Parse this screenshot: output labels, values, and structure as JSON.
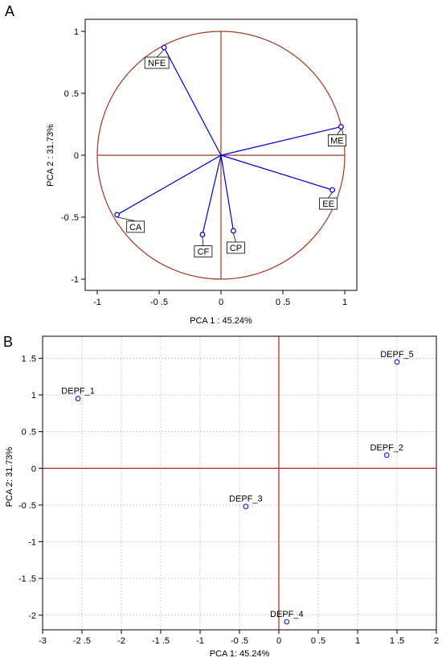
{
  "panels": {
    "a": {
      "label": "A"
    },
    "b": {
      "label": "B"
    }
  },
  "colors": {
    "axis": "#000000",
    "refline": "#b22222",
    "circle": "#9b3a2a",
    "vector": "#0000c8",
    "point": "#1f2fd6",
    "grid": "#c0c0c0",
    "text": "#000000"
  },
  "chart_data": [
    {
      "type": "scatter",
      "subtype": "pca-variable-loadings",
      "xlabel": "PCA 1 : 45.24%",
      "ylabel": "PCA 2 : 31.73%",
      "xlim": [
        -1,
        1
      ],
      "ylim": [
        -1,
        1
      ],
      "xticks": [
        -1,
        -0.5,
        0,
        0.5,
        1
      ],
      "yticks": [
        -1,
        -0.5,
        0,
        0.5,
        1
      ],
      "xtick_labels": [
        "-1",
        "-0 .5",
        "0",
        "0 .5",
        "1"
      ],
      "ytick_labels": [
        "-1",
        "-0 .5",
        "0",
        "0 .5",
        "1"
      ],
      "grid": false,
      "unit_circle": true,
      "points": [
        {
          "label": "NFE",
          "x": -0.46,
          "y": 0.87
        },
        {
          "label": "ME",
          "x": 0.97,
          "y": 0.23
        },
        {
          "label": "EE",
          "x": 0.9,
          "y": -0.28
        },
        {
          "label": "CA",
          "x": -0.84,
          "y": -0.48
        },
        {
          "label": "CF",
          "x": -0.15,
          "y": -0.64
        },
        {
          "label": "CP",
          "x": 0.1,
          "y": -0.61
        }
      ]
    },
    {
      "type": "scatter",
      "subtype": "pca-sample-scores",
      "xlabel": "PCA 1: 45.24%",
      "ylabel": "PCA 2: 31.73%",
      "xlim": [
        -3,
        2
      ],
      "ylim": [
        -2.2,
        1.8
      ],
      "xticks": [
        -3,
        -2.5,
        -2,
        -1.5,
        -1,
        -0.5,
        0,
        0.5,
        1,
        1.5,
        2
      ],
      "yticks": [
        -2,
        -1.5,
        -1,
        -0.5,
        0,
        0.5,
        1,
        1.5
      ],
      "xtick_labels": [
        "-3",
        "-2 .5",
        "-2",
        "-1 .5",
        "-1",
        "-0 .5",
        "0",
        "0 .5",
        "1",
        "1 .5",
        "2"
      ],
      "ytick_labels": [
        "-2",
        "-1 .5",
        "-1",
        "-0 .5",
        "0",
        "0 .5",
        "1",
        "1 .5"
      ],
      "grid": true,
      "points": [
        {
          "label": "DEPF_1",
          "x": -2.55,
          "y": 0.95
        },
        {
          "label": "DEPF_2",
          "x": 1.37,
          "y": 0.18
        },
        {
          "label": "DEPF_3",
          "x": -0.42,
          "y": -0.52
        },
        {
          "label": "DEPF_4",
          "x": 0.1,
          "y": -2.09
        },
        {
          "label": "DEPF_5",
          "x": 1.5,
          "y": 1.45
        }
      ]
    }
  ]
}
